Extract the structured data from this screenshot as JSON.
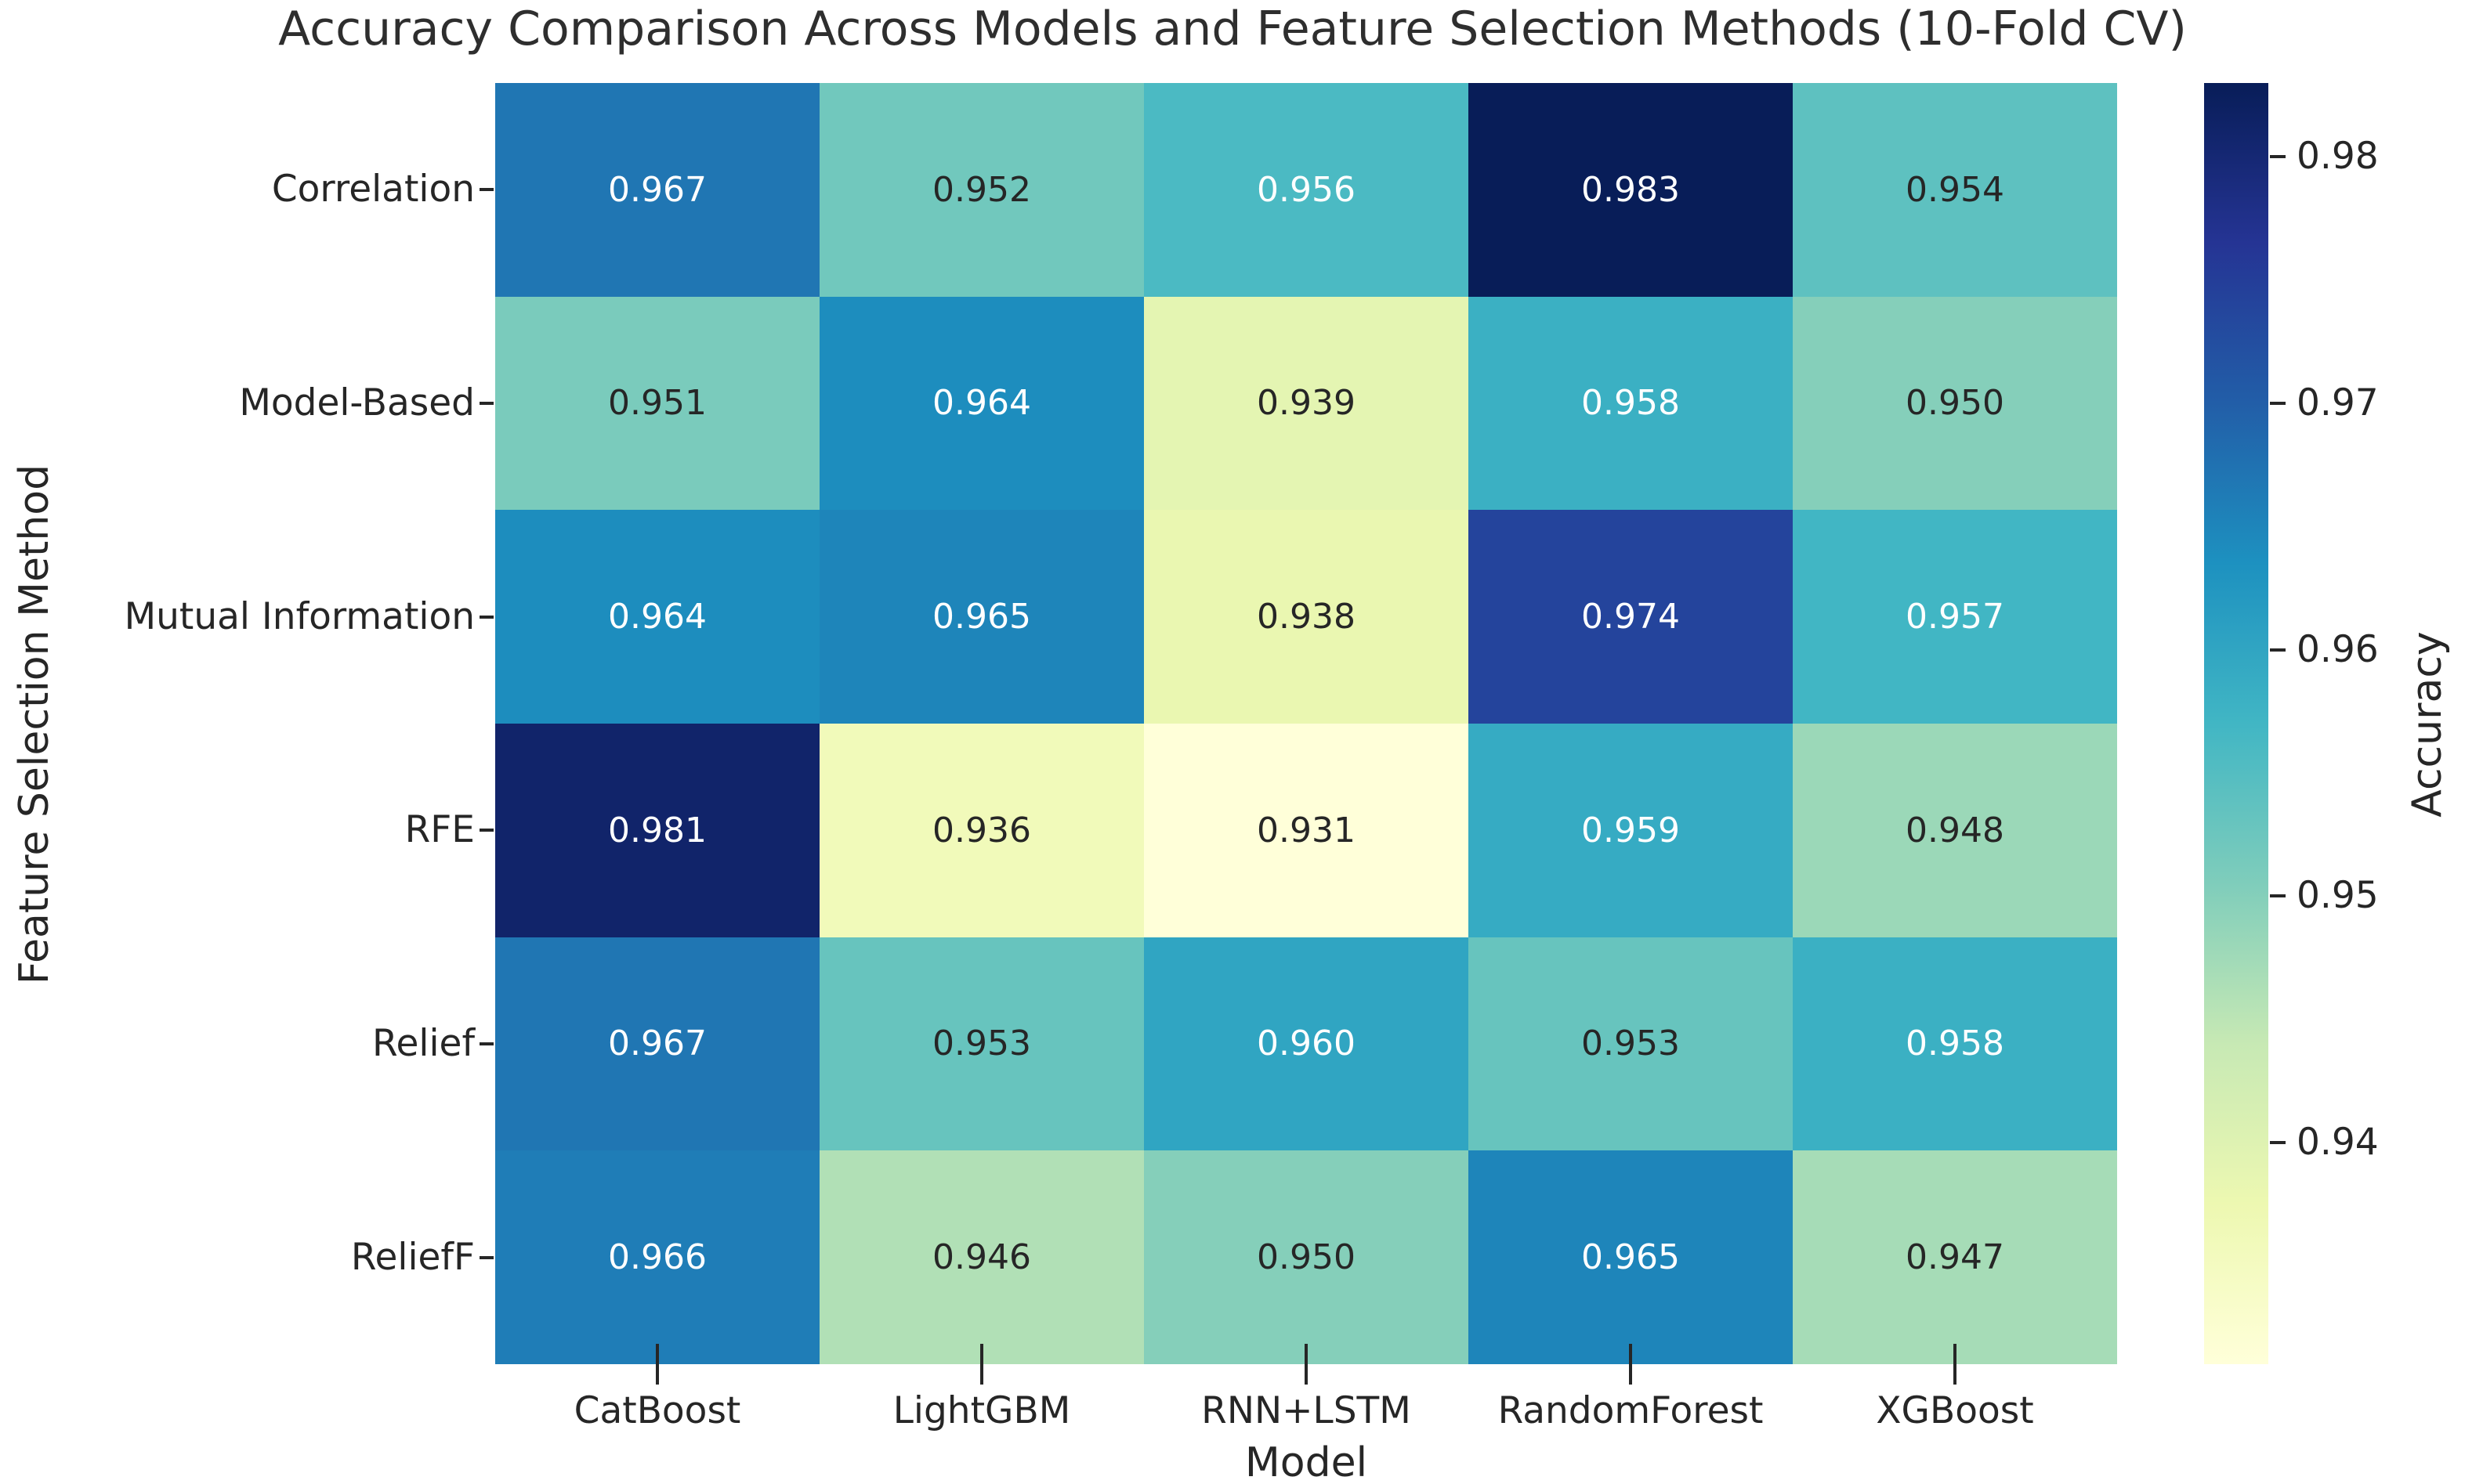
{
  "chart_data": {
    "type": "heatmap",
    "title": "Accuracy Comparison Across Models and Feature Selection Methods (10-Fold CV)",
    "xlabel": "Model",
    "ylabel": "Feature Selection Method",
    "columns": [
      "CatBoost",
      "LightGBM",
      "RNN+LSTM",
      "RandomForest",
      "XGBoost"
    ],
    "rows": [
      "Correlation",
      "Model-Based",
      "Mutual Information",
      "RFE",
      "Relief",
      "ReliefF"
    ],
    "values": [
      [
        0.967,
        0.952,
        0.956,
        0.983,
        0.954
      ],
      [
        0.951,
        0.964,
        0.939,
        0.958,
        0.95
      ],
      [
        0.964,
        0.965,
        0.938,
        0.974,
        0.957
      ],
      [
        0.981,
        0.936,
        0.931,
        0.959,
        0.948
      ],
      [
        0.967,
        0.953,
        0.96,
        0.953,
        0.958
      ],
      [
        0.966,
        0.946,
        0.95,
        0.965,
        0.947
      ]
    ],
    "annotation_decimals": 3,
    "vmin": 0.931,
    "vmax": 0.983,
    "colormap": "YlGnBu",
    "colormap_stops": [
      "#ffffd9",
      "#edf8b1",
      "#c7e9b4",
      "#7fcdbb",
      "#41b6c4",
      "#1d91c0",
      "#225ea8",
      "#253494",
      "#081d58"
    ],
    "colorbar": {
      "label": "Accuracy",
      "position": "right",
      "tick_labels": [
        "0.98",
        "0.97",
        "0.96",
        "0.95",
        "0.94"
      ],
      "tick_values": [
        0.98,
        0.97,
        0.96,
        0.95,
        0.94
      ]
    },
    "grid": false,
    "annotation_dark_text_color": "#262626",
    "annotation_light_text_color": "#ffffff"
  }
}
